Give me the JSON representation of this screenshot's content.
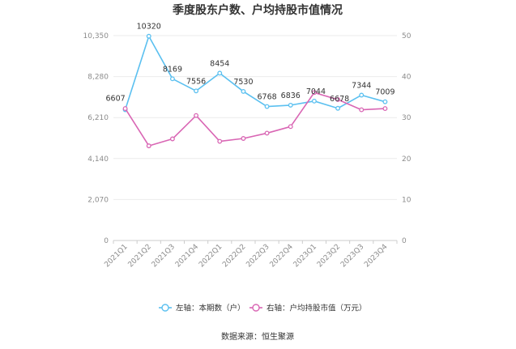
{
  "chart_data": {
    "type": "line",
    "title": "季度股东户数、户均持股市值情况",
    "categories": [
      "2021Q1",
      "2021Q2",
      "2021Q3",
      "2021Q4",
      "2022Q1",
      "2022Q2",
      "2022Q3",
      "2022Q4",
      "2023Q1",
      "2023Q2",
      "2023Q3",
      "2023Q4"
    ],
    "left_axis": {
      "ticks": [
        "0",
        "2,070",
        "4,140",
        "6,210",
        "8,280",
        "10,350"
      ],
      "ylim": [
        0,
        10350
      ]
    },
    "right_axis": {
      "ticks": [
        "0",
        "10",
        "20",
        "30",
        "40",
        "50"
      ],
      "ylim": [
        0,
        50
      ]
    },
    "grid": true,
    "legend_position": "bottom",
    "series": [
      {
        "name": "左轴：本期数（户）",
        "axis": "left",
        "color": "#5bc0f0",
        "values": [
          6607,
          10320,
          8169,
          7556,
          8454,
          7530,
          6768,
          6836,
          7044,
          6678,
          7344,
          7009
        ],
        "labels": [
          "6607",
          "10320",
          "8169",
          "7556",
          "8454",
          "7530",
          "6768",
          "6836",
          "7044",
          "6678",
          "7344",
          "7009"
        ]
      },
      {
        "name": "右轴：户均持股市值（万元）",
        "axis": "right",
        "color": "#d966b4",
        "values": [
          32.2,
          23.1,
          24.8,
          30.5,
          24.2,
          24.9,
          26.2,
          27.8,
          36.1,
          34.4,
          31.9,
          32.2
        ]
      }
    ],
    "source": "数据来源：恒生聚源"
  }
}
